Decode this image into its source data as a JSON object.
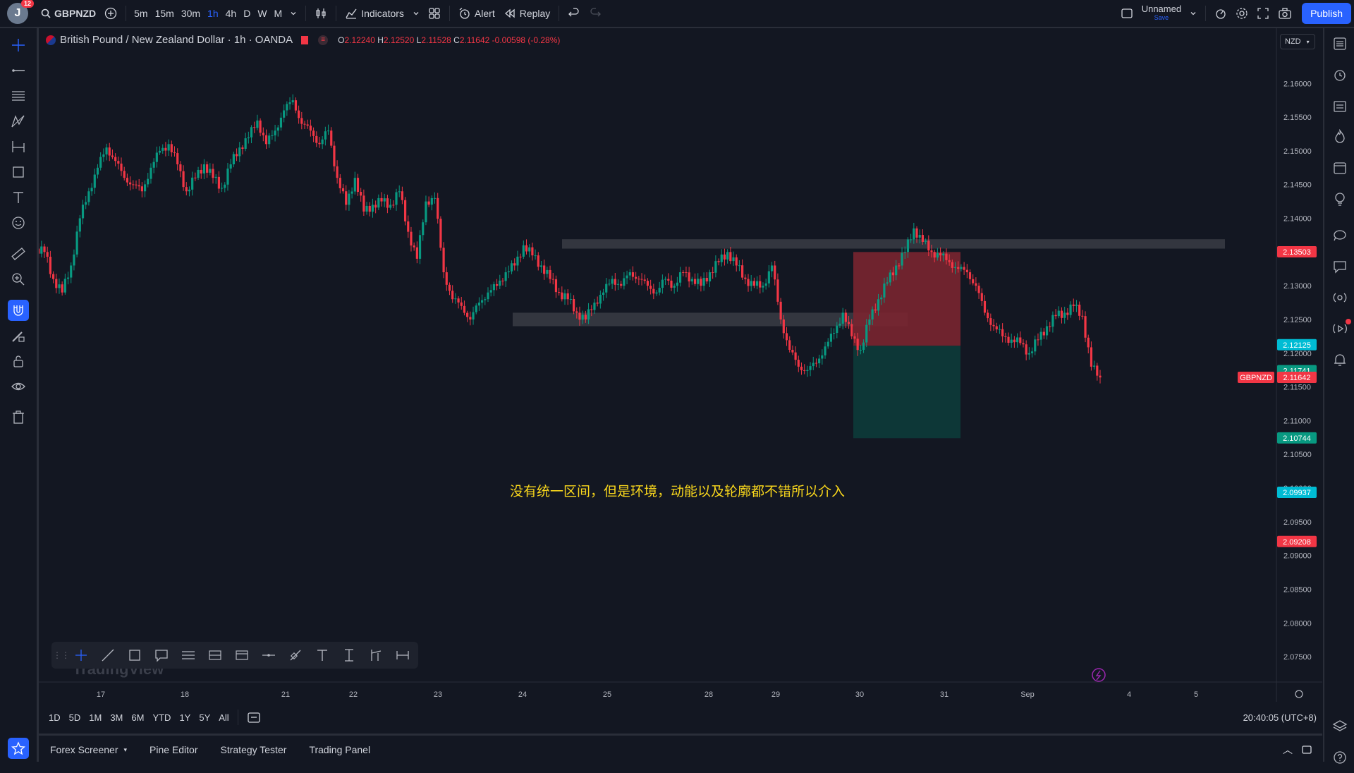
{
  "header": {
    "avatar_initial": "J",
    "notification_count": "12",
    "symbol": "GBPNZD",
    "timeframes": [
      "5m",
      "15m",
      "30m",
      "1h",
      "4h",
      "D",
      "W",
      "M"
    ],
    "active_timeframe": "1h",
    "indicators_label": "Indicators",
    "alert_label": "Alert",
    "replay_label": "Replay",
    "layout_name": "Unnamed",
    "layout_save": "Save",
    "publish_label": "Publish"
  },
  "legend": {
    "title": "British Pound / New Zealand Dollar · 1h · OANDA",
    "o_label": "O",
    "o": "2.12240",
    "h_label": "H",
    "h": "2.12520",
    "l_label": "L",
    "l": "2.11528",
    "c_label": "C",
    "c": "2.11642",
    "change": "-0.00598 (-0.28%)"
  },
  "currency": "NZD",
  "annotation_text": "没有统一区间，但是环境，动能以及轮廓都不错所以介入",
  "watermark": "TradingView",
  "chart_data": {
    "type": "candlestick",
    "symbol": "GBPNZD",
    "ylim": [
      2.0725,
      2.164
    ],
    "y_ticks": [
      "2.16000",
      "2.15500",
      "2.15000",
      "2.14500",
      "2.14000",
      "2.13500",
      "2.13000",
      "2.12500",
      "2.12000",
      "2.11500",
      "2.11000",
      "2.10500",
      "2.10000",
      "2.09500",
      "2.09000",
      "2.08500",
      "2.08000",
      "2.07500"
    ],
    "x_ticks": [
      "17",
      "18",
      "21",
      "22",
      "23",
      "24",
      "25",
      "28",
      "29",
      "30",
      "31",
      "Sep",
      "4",
      "5"
    ],
    "price_labels": [
      {
        "value": "2.13503",
        "color": "#f23645"
      },
      {
        "value": "2.12125",
        "color": "#00bcd4"
      },
      {
        "value": "2.11741",
        "color": "#089981"
      },
      {
        "value": "2.11642",
        "color": "#f23645"
      },
      {
        "value": "2.10744",
        "color": "#089981"
      },
      {
        "value": "2.09937",
        "color": "#00bcd4"
      },
      {
        "value": "2.09208",
        "color": "#f23645"
      }
    ],
    "symbol_tag": "GBPNZD",
    "zones": [
      {
        "type": "resistance",
        "y_top": 2.1369,
        "y_bottom": 2.1355
      },
      {
        "type": "support",
        "y_top": 2.126,
        "y_bottom": 2.124
      }
    ],
    "position": {
      "type": "short",
      "entry": 2.1211,
      "stop": 2.135,
      "target": 2.1074
    },
    "closes": [
      2.135,
      2.131,
      2.129,
      2.133,
      2.14,
      2.144,
      2.1475,
      2.1505,
      2.1485,
      2.146,
      2.145,
      2.144,
      2.1475,
      2.15,
      2.151,
      2.148,
      2.144,
      2.146,
      2.148,
      2.146,
      2.1445,
      2.148,
      2.1505,
      2.152,
      2.1545,
      2.151,
      2.153,
      2.156,
      2.1575,
      2.154,
      2.153,
      2.151,
      2.153,
      2.146,
      2.142,
      2.146,
      2.141,
      2.142,
      2.1425,
      2.142,
      2.144,
      2.138,
      2.134,
      2.1425,
      2.143,
      2.132,
      2.128,
      2.127,
      2.125,
      2.1275,
      2.129,
      2.13,
      2.132,
      2.133,
      2.136,
      2.1345,
      2.133,
      2.131,
      2.129,
      2.128,
      2.126,
      2.125,
      2.1275,
      2.129,
      2.131,
      2.13,
      2.132,
      2.131,
      2.13,
      2.129,
      2.131,
      2.13,
      2.132,
      2.131,
      2.13,
      2.132,
      2.1335,
      2.135,
      2.133,
      2.131,
      2.13,
      2.13,
      2.133,
      2.125,
      2.1205,
      2.118,
      2.1175,
      2.1185,
      2.121,
      2.123,
      2.126,
      2.1225,
      2.1205,
      2.125,
      2.128,
      2.1305,
      2.133,
      2.135,
      2.1385,
      2.1365,
      2.135,
      2.1345,
      2.1335,
      2.1325,
      2.132,
      2.13,
      2.126,
      2.124,
      2.1225,
      2.122,
      2.1215,
      2.12,
      2.122,
      2.124,
      2.1255,
      2.126,
      2.127,
      2.1255,
      2.118,
      2.1164
    ]
  },
  "bottom": {
    "ranges": [
      "1D",
      "5D",
      "1M",
      "3M",
      "6M",
      "YTD",
      "1Y",
      "5Y",
      "All"
    ],
    "clock": "20:40:05 (UTC+8)",
    "tabs": [
      "Forex Screener",
      "Pine Editor",
      "Strategy Tester",
      "Trading Panel"
    ]
  }
}
